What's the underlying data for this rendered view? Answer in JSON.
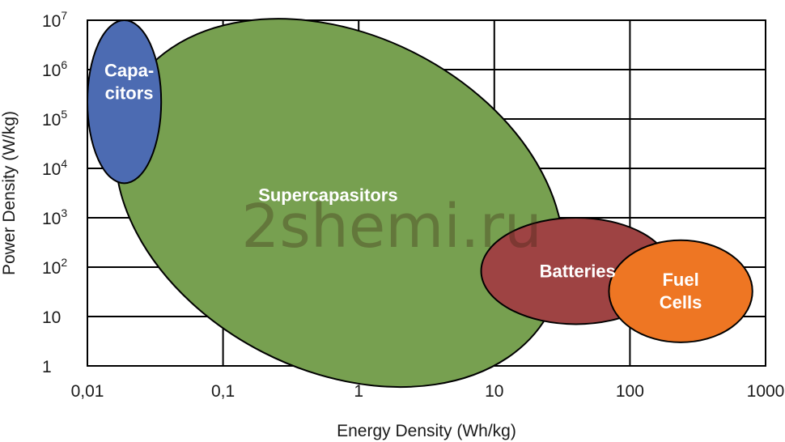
{
  "chart_data": {
    "type": "area",
    "title": "",
    "xlabel": "Energy Density (Wh/kg)",
    "ylabel": "Power Density (W/kg)",
    "xscale": "log",
    "yscale": "log",
    "xlim": [
      0.01,
      1000
    ],
    "ylim": [
      1,
      10000000
    ],
    "grid": true,
    "x_ticks": [
      {
        "value": 0.01,
        "label": "0,01"
      },
      {
        "value": 0.1,
        "label": "0,1"
      },
      {
        "value": 1,
        "label": "1"
      },
      {
        "value": 10,
        "label": "10"
      },
      {
        "value": 100,
        "label": "100"
      },
      {
        "value": 1000,
        "label": "1000"
      }
    ],
    "y_ticks": [
      {
        "value": 1,
        "base": "1",
        "exp": ""
      },
      {
        "value": 10,
        "base": "10",
        "exp": ""
      },
      {
        "value": 100,
        "base": "10",
        "exp": "2"
      },
      {
        "value": 1000,
        "base": "10",
        "exp": "3"
      },
      {
        "value": 10000,
        "base": "10",
        "exp": "4"
      },
      {
        "value": 100000,
        "base": "10",
        "exp": "5"
      },
      {
        "value": 1000000,
        "base": "10",
        "exp": "6"
      },
      {
        "value": 10000000,
        "base": "10",
        "exp": "7"
      }
    ],
    "regions": [
      {
        "name": "Supercapasitors",
        "label_lines": [
          "Supercapasitors"
        ],
        "color": "#77a050",
        "x_range": [
          0.013,
          40
        ],
        "y_range": [
          0.8,
          5000000
        ]
      },
      {
        "name": "Capacitors",
        "label_lines": [
          "Capa-",
          "citors"
        ],
        "color": "#4c6bb2",
        "x_range": [
          0.01,
          0.035
        ],
        "y_range": [
          5000,
          10000000
        ]
      },
      {
        "name": "Batteries",
        "label_lines": [
          "Batteries"
        ],
        "color": "#9e4343",
        "x_range": [
          8,
          200
        ],
        "y_range": [
          7,
          1000
        ]
      },
      {
        "name": "Fuel Cells",
        "label_lines": [
          "Fuel",
          "Cells"
        ],
        "color": "#ee7623",
        "x_range": [
          70,
          800
        ],
        "y_range": [
          3,
          350
        ]
      }
    ],
    "watermark": "2shemi.ru"
  }
}
